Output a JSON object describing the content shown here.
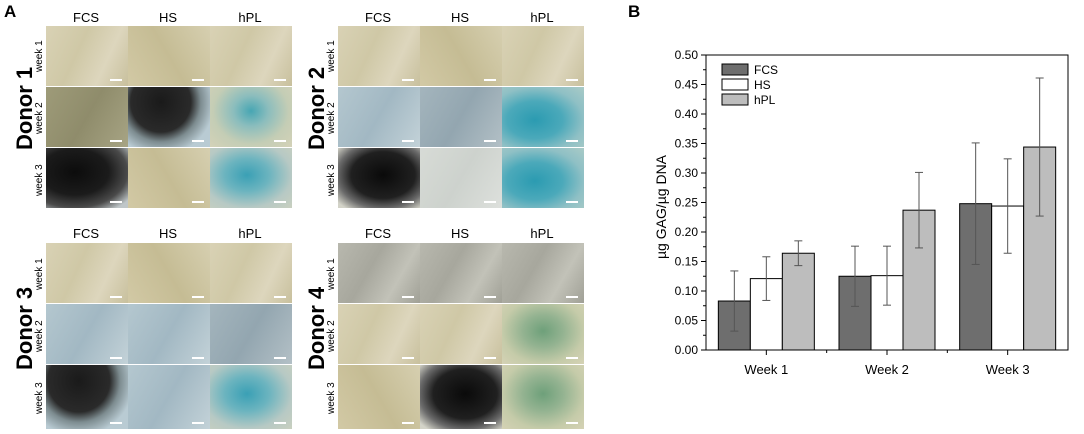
{
  "panel_a": {
    "letter": "A",
    "col_labels": [
      "FCS",
      "HS",
      "hPL"
    ],
    "week_labels": [
      "week 1",
      "week 2",
      "week 3"
    ],
    "donors": [
      "Donor 1",
      "Donor 2",
      "Donor 3",
      "Donor 4"
    ]
  },
  "panel_b": {
    "letter": "B"
  },
  "chart_data": {
    "type": "bar",
    "categories": [
      "Week 1",
      "Week 2",
      "Week 3"
    ],
    "ylabel": "µg GAG/µg DNA",
    "xlabel": "",
    "ylim": [
      0,
      0.5
    ],
    "yticks": [
      "0.00",
      "0.05",
      "0.10",
      "0.15",
      "0.20",
      "0.25",
      "0.30",
      "0.35",
      "0.40",
      "0.45",
      "0.50"
    ],
    "legend_position": "top-left",
    "series": [
      {
        "name": "FCS",
        "color": "#6e6e6e",
        "values": [
          0.083,
          0.125,
          0.248
        ],
        "errors": [
          0.051,
          0.051,
          0.103
        ]
      },
      {
        "name": "HS",
        "color": "#ffffff",
        "values": [
          0.121,
          0.126,
          0.244
        ],
        "errors": [
          0.037,
          0.05,
          0.08
        ]
      },
      {
        "name": "hPL",
        "color": "#bdbdbd",
        "values": [
          0.164,
          0.237,
          0.344
        ],
        "errors": [
          0.021,
          0.064,
          0.117
        ]
      }
    ]
  }
}
